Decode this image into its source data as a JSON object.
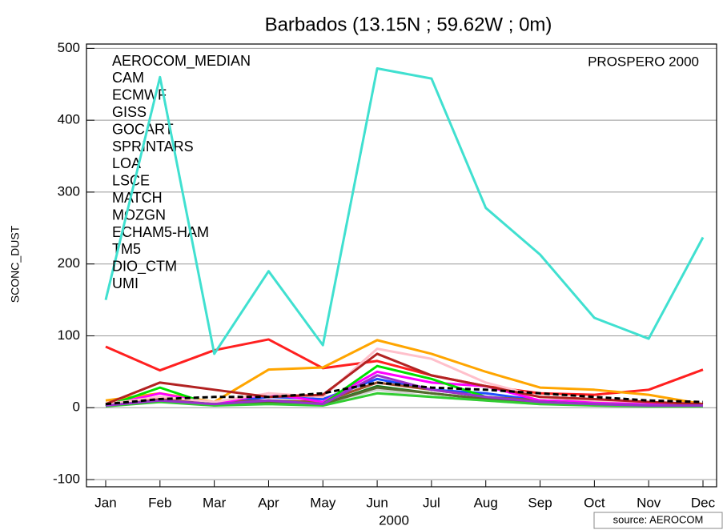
{
  "chart_data": {
    "type": "line",
    "title": "Barbados (13.15N ; 59.62W ; 0m)",
    "y_label": "SCONC_DUST",
    "x_label": "2000",
    "source": "source: AEROCOM",
    "categories": [
      "Jan",
      "Feb",
      "Mar",
      "Apr",
      "May",
      "Jun",
      "Jul",
      "Aug",
      "Sep",
      "Oct",
      "Nov",
      "Dec"
    ],
    "ylim": [
      -110,
      506
    ],
    "yticks": [
      -100,
      0,
      100,
      200,
      300,
      400,
      500
    ],
    "grid": true,
    "series": [
      {
        "name": "AEROCOM_MEDIAN",
        "color": "#1f4fff",
        "values": [
          3,
          15,
          5,
          15,
          12,
          40,
          25,
          20,
          10,
          8,
          5,
          4
        ]
      },
      {
        "name": "CAM",
        "color": "#ff2020",
        "values": [
          85,
          52,
          80,
          95,
          55,
          65,
          45,
          30,
          20,
          18,
          25,
          53
        ]
      },
      {
        "name": "ECMWF",
        "color": "#1a7a1a",
        "values": [
          3,
          10,
          5,
          8,
          5,
          30,
          20,
          12,
          8,
          5,
          3,
          2
        ]
      },
      {
        "name": "GISS",
        "color": "#ffa500",
        "values": [
          10,
          20,
          8,
          53,
          56,
          94,
          75,
          50,
          28,
          25,
          18,
          5
        ]
      },
      {
        "name": "GOCART",
        "color": "#a0522d",
        "values": [
          5,
          12,
          8,
          10,
          8,
          35,
          25,
          15,
          10,
          8,
          5,
          5
        ]
      },
      {
        "name": "SPRINTARS",
        "color": "#ff00ff",
        "values": [
          3,
          20,
          5,
          20,
          8,
          50,
          35,
          30,
          10,
          8,
          5,
          3
        ]
      },
      {
        "name": "LOA",
        "color": "#00e000",
        "values": [
          2,
          28,
          3,
          10,
          5,
          58,
          40,
          15,
          8,
          5,
          3,
          2
        ]
      },
      {
        "name": "LSCE",
        "color": "#ffc0cb",
        "values": [
          5,
          15,
          8,
          20,
          15,
          82,
          68,
          35,
          15,
          10,
          8,
          5
        ]
      },
      {
        "name": "MATCH",
        "color": "#b22222",
        "values": [
          5,
          35,
          25,
          15,
          18,
          75,
          45,
          30,
          15,
          12,
          8,
          5
        ]
      },
      {
        "name": "MOZGN",
        "color": "#d3d3d3",
        "values": [
          3,
          8,
          5,
          8,
          5,
          25,
          15,
          10,
          5,
          5,
          3,
          3
        ]
      },
      {
        "name": "ECHAM5-HAM",
        "color": "#556b2f",
        "values": [
          3,
          10,
          5,
          8,
          5,
          28,
          20,
          12,
          8,
          5,
          3,
          3
        ]
      },
      {
        "name": "TM5",
        "color": "#32cd32",
        "values": [
          2,
          8,
          3,
          5,
          3,
          20,
          15,
          10,
          5,
          3,
          2,
          2
        ]
      },
      {
        "name": "DIO_CTM",
        "color": "#40e0d0",
        "values": [
          150,
          460,
          75,
          190,
          87,
          472,
          458,
          278,
          213,
          125,
          96,
          237
        ]
      },
      {
        "name": "UMI",
        "color": "#9932cc",
        "values": [
          3,
          10,
          5,
          10,
          5,
          45,
          25,
          15,
          8,
          5,
          3,
          3
        ]
      },
      {
        "name": "PROSPERO 2000",
        "color": "#000000",
        "dashed": true,
        "values": [
          5,
          12,
          15,
          15,
          20,
          35,
          28,
          25,
          20,
          15,
          10,
          8
        ]
      }
    ]
  }
}
